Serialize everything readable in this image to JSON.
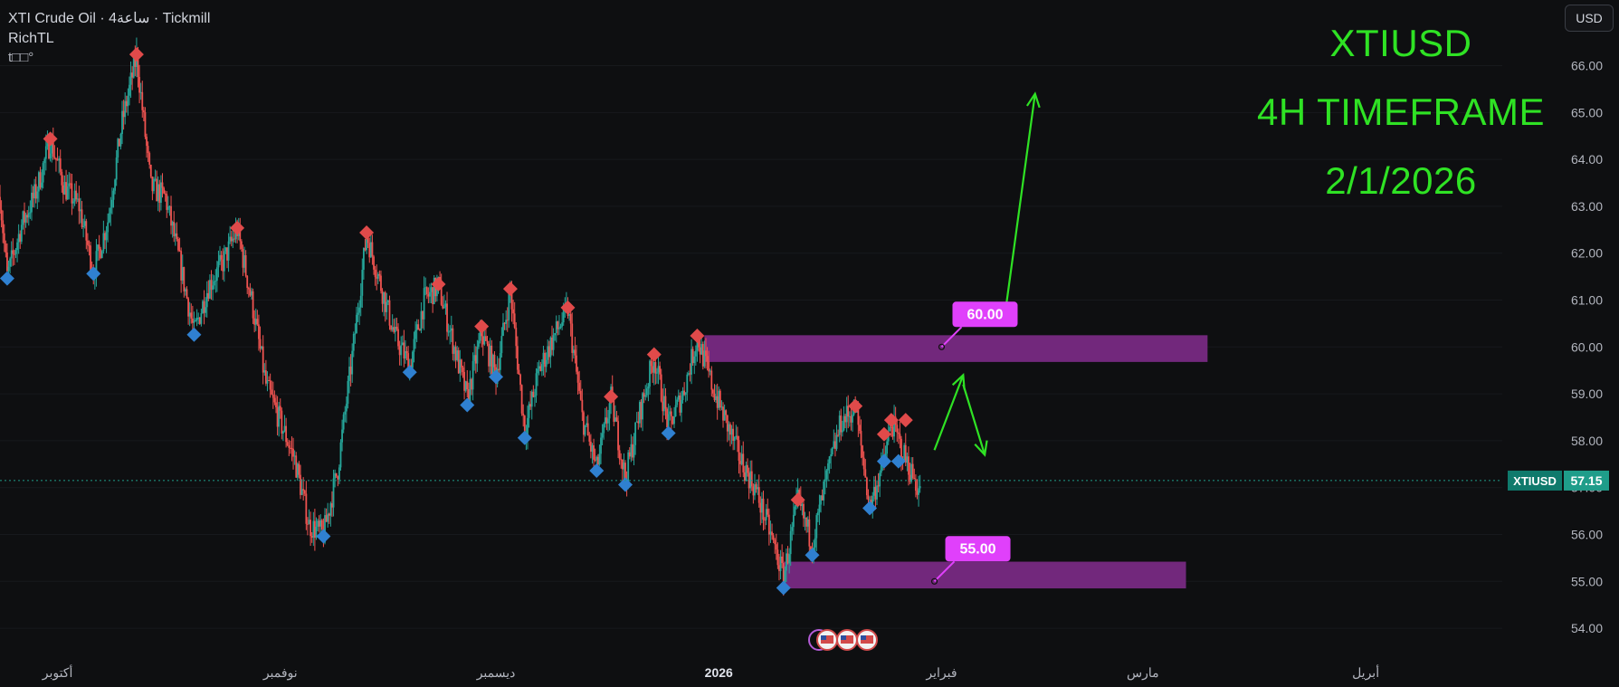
{
  "header": {
    "symbol_line": "XTI Crude Oil · 4ساعة · Tickmill",
    "indicator": "RichTL",
    "indicator_status": "t□□°"
  },
  "currency_button": "USD",
  "annotations": {
    "title": "XTIUSD",
    "timeframe": "4H TIMEFRAME",
    "date": "2/1/2026"
  },
  "colors": {
    "background": "#0e0f11",
    "up_candle": "#26a69a",
    "down_candle": "#ef5350",
    "zone": "#7b2a86",
    "label": "#e040fb",
    "arrow": "#2fe224",
    "swing_high_marker": "#e04a4a",
    "swing_low_marker": "#2f80d0"
  },
  "chart_data": {
    "type": "candlestick",
    "symbol": "XTIUSD",
    "timeframe": "4H",
    "y_axis": {
      "ticks": [
        54.0,
        55.0,
        56.0,
        57.0,
        58.0,
        59.0,
        60.0,
        61.0,
        62.0,
        63.0,
        64.0,
        65.0,
        66.0
      ],
      "tick_labels": [
        "54.00",
        "55.00",
        "56.00",
        "57.00",
        "58.00",
        "59.00",
        "60.00",
        "61.00",
        "62.00",
        "63.00",
        "64.00",
        "65.00",
        "66.00"
      ],
      "range": [
        53.5,
        67.4
      ]
    },
    "x_axis": {
      "range": [
        "2025-09-23",
        "2026-04-20"
      ],
      "ticks": [
        {
          "date": "2025-10-01",
          "label": "أكتوبر"
        },
        {
          "date": "2025-11-01",
          "label": "نوفمبر"
        },
        {
          "date": "2025-12-01",
          "label": "ديسمبر"
        },
        {
          "date": "2026-01-01",
          "label": "2026"
        },
        {
          "date": "2026-02-01",
          "label": "فبراير"
        },
        {
          "date": "2026-03-01",
          "label": "مارس"
        },
        {
          "date": "2026-04-01",
          "label": "أبريل"
        }
      ]
    },
    "last_price": {
      "symbol": "XTIUSD",
      "value": 57.15,
      "label": "57.15"
    },
    "price_path": [
      [
        "2025-09-23",
        63.2
      ],
      [
        "2025-09-24",
        61.5
      ],
      [
        "2025-09-26",
        62.6
      ],
      [
        "2025-09-28",
        63.3
      ],
      [
        "2025-09-30",
        64.4
      ],
      [
        "2025-10-02",
        63.4
      ],
      [
        "2025-10-04",
        63.0
      ],
      [
        "2025-10-06",
        61.6
      ],
      [
        "2025-10-08",
        62.7
      ],
      [
        "2025-10-10",
        64.8
      ],
      [
        "2025-10-12",
        66.2
      ],
      [
        "2025-10-14",
        63.4
      ],
      [
        "2025-10-16",
        63.2
      ],
      [
        "2025-10-18",
        61.8
      ],
      [
        "2025-10-20",
        60.3
      ],
      [
        "2025-10-22",
        61.3
      ],
      [
        "2025-10-24",
        61.8
      ],
      [
        "2025-10-26",
        62.5
      ],
      [
        "2025-10-28",
        61.0
      ],
      [
        "2025-10-30",
        59.2
      ],
      [
        "2025-11-01",
        58.4
      ],
      [
        "2025-11-03",
        57.6
      ],
      [
        "2025-11-05",
        56.2
      ],
      [
        "2025-11-07",
        56.0
      ],
      [
        "2025-11-09",
        57.4
      ],
      [
        "2025-11-11",
        59.8
      ],
      [
        "2025-11-13",
        62.4
      ],
      [
        "2025-11-15",
        61.3
      ],
      [
        "2025-11-17",
        60.2
      ],
      [
        "2025-11-19",
        59.6
      ],
      [
        "2025-11-21",
        61.0
      ],
      [
        "2025-11-23",
        61.3
      ],
      [
        "2025-11-25",
        60.1
      ],
      [
        "2025-11-27",
        58.9
      ],
      [
        "2025-11-29",
        60.3
      ],
      [
        "2025-12-01",
        59.4
      ],
      [
        "2025-12-03",
        61.2
      ],
      [
        "2025-12-05",
        58.2
      ],
      [
        "2025-12-07",
        59.5
      ],
      [
        "2025-12-09",
        60.2
      ],
      [
        "2025-12-11",
        60.8
      ],
      [
        "2025-12-13",
        58.5
      ],
      [
        "2025-12-15",
        57.4
      ],
      [
        "2025-12-17",
        58.9
      ],
      [
        "2025-12-19",
        57.2
      ],
      [
        "2025-12-21",
        58.6
      ],
      [
        "2025-12-23",
        59.8
      ],
      [
        "2025-12-25",
        58.3
      ],
      [
        "2025-12-27",
        59.0
      ],
      [
        "2025-12-29",
        60.2
      ],
      [
        "2025-12-31",
        59.2
      ],
      [
        "2026-01-02",
        58.4
      ],
      [
        "2026-01-04",
        57.6
      ],
      [
        "2026-01-06",
        57.0
      ],
      [
        "2026-01-08",
        56.1
      ],
      [
        "2026-01-10",
        55.1
      ],
      [
        "2026-01-12",
        56.7
      ],
      [
        "2026-01-14",
        55.8
      ],
      [
        "2026-01-16",
        57.2
      ],
      [
        "2026-01-18",
        58.4
      ],
      [
        "2026-01-20",
        58.7
      ],
      [
        "2026-01-22",
        56.6
      ],
      [
        "2026-01-24",
        57.6
      ],
      [
        "2026-01-25",
        58.4
      ],
      [
        "2026-01-27",
        57.6
      ],
      [
        "2026-01-29",
        56.9
      ]
    ],
    "swing_highs": [
      [
        "2025-09-30",
        64.4
      ],
      [
        "2025-10-12",
        66.2
      ],
      [
        "2025-10-26",
        62.5
      ],
      [
        "2025-11-13",
        62.4
      ],
      [
        "2025-11-23",
        61.3
      ],
      [
        "2025-11-29",
        60.4
      ],
      [
        "2025-12-03",
        61.2
      ],
      [
        "2025-12-11",
        60.8
      ],
      [
        "2025-12-17",
        58.9
      ],
      [
        "2025-12-23",
        59.8
      ],
      [
        "2025-12-29",
        60.2
      ],
      [
        "2026-01-12",
        56.7
      ],
      [
        "2026-01-20",
        58.7
      ],
      [
        "2026-01-24",
        58.1
      ],
      [
        "2026-01-25",
        58.4
      ],
      [
        "2026-01-27",
        58.4
      ]
    ],
    "swing_lows": [
      [
        "2025-09-24",
        61.5
      ],
      [
        "2025-10-06",
        61.6
      ],
      [
        "2025-10-20",
        60.3
      ],
      [
        "2025-11-07",
        56.0
      ],
      [
        "2025-11-19",
        59.5
      ],
      [
        "2025-11-27",
        58.8
      ],
      [
        "2025-12-01",
        59.4
      ],
      [
        "2025-12-05",
        58.1
      ],
      [
        "2025-12-15",
        57.4
      ],
      [
        "2025-12-19",
        57.1
      ],
      [
        "2025-12-25",
        58.2
      ],
      [
        "2026-01-10",
        54.9
      ],
      [
        "2026-01-14",
        55.6
      ],
      [
        "2026-01-22",
        56.6
      ],
      [
        "2026-01-24",
        57.6
      ],
      [
        "2026-01-26",
        57.6
      ]
    ],
    "zones": [
      {
        "label": "60.00",
        "top": 60.25,
        "bottom": 59.68,
        "start": "2025-12-30",
        "end": "2026-03-10",
        "anchor": [
          "2026-02-01",
          60.0
        ]
      },
      {
        "label": "55.00",
        "top": 55.42,
        "bottom": 54.85,
        "start": "2026-01-10",
        "end": "2026-03-07",
        "anchor": [
          "2026-01-31",
          55.0
        ]
      }
    ],
    "arrows": [
      {
        "from": [
          "2026-01-31",
          57.8
        ],
        "to": [
          "2026-02-04",
          59.4
        ]
      },
      {
        "from": [
          "2026-02-04",
          59.2
        ],
        "to": [
          "2026-02-07",
          57.7
        ]
      },
      {
        "from": [
          "2026-02-10",
          60.9
        ],
        "to": [
          "2026-02-14",
          65.4
        ]
      }
    ]
  }
}
